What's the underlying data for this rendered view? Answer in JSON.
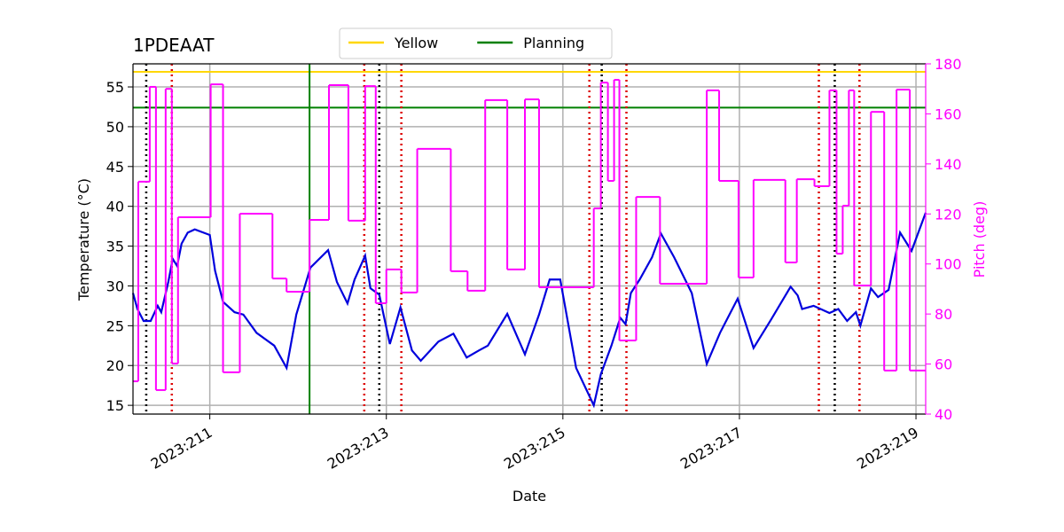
{
  "chart_data": {
    "type": "line",
    "title": "1PDEAAT",
    "x_label": "Date",
    "y_label": "Temperature (°C)",
    "y2_label": "Pitch (deg)",
    "y2_color": "#ff00ff",
    "xlim": [
      210.13,
      219.11
    ],
    "xticks": [
      {
        "value": 211,
        "label": "2023:211"
      },
      {
        "value": 213,
        "label": "2023:213"
      },
      {
        "value": 215,
        "label": "2023:215"
      },
      {
        "value": 217,
        "label": "2023:217"
      },
      {
        "value": 219,
        "label": "2023:219"
      }
    ],
    "ylim": [
      13.9,
      57.9
    ],
    "yticks": [
      15,
      20,
      25,
      30,
      35,
      40,
      45,
      50,
      55
    ],
    "y2lim": [
      40,
      180
    ],
    "y2ticks": [
      40,
      60,
      80,
      100,
      120,
      140,
      160,
      180
    ],
    "grid": true,
    "reference_lines": [
      {
        "name": "Yellow",
        "color": "#ffd700",
        "y": 56.9
      },
      {
        "name": "Planning",
        "color": "#008000",
        "y": 52.4,
        "x": 212.13
      }
    ],
    "vertical_markers": [
      {
        "color": "#000000",
        "x": [
          210.28,
          212.92,
          215.44,
          218.08
        ]
      },
      {
        "color": "#dd0000",
        "x": [
          210.57,
          212.75,
          213.17,
          215.3,
          215.72,
          217.9,
          218.36
        ]
      }
    ],
    "series": [
      {
        "color": "#0000dd",
        "style": "line",
        "x": [
          210.13,
          210.18,
          210.25,
          210.33,
          210.41,
          210.45,
          210.53,
          210.58,
          210.63,
          210.68,
          210.75,
          210.83,
          211.0,
          211.06,
          211.15,
          211.28,
          211.38,
          211.53,
          211.73,
          211.87,
          211.98,
          212.14,
          212.34,
          212.44,
          212.56,
          212.64,
          212.76,
          212.82,
          212.92,
          213.04,
          213.16,
          213.29,
          213.39,
          213.59,
          213.76,
          213.91,
          214.05,
          214.15,
          214.37,
          214.57,
          214.73,
          214.85,
          214.97,
          215.15,
          215.35,
          215.43,
          215.55,
          215.65,
          215.71,
          215.77,
          215.87,
          216.01,
          216.11,
          216.26,
          216.46,
          216.63,
          216.78,
          216.98,
          217.16,
          217.36,
          217.51,
          217.58,
          217.66,
          217.71,
          217.84,
          218.02,
          218.12,
          218.22,
          218.32,
          218.37,
          218.49,
          218.57,
          218.69,
          218.82,
          218.95,
          219.11
        ],
        "values": [
          29.1,
          27.1,
          25.6,
          25.6,
          27.5,
          26.7,
          30.5,
          33.4,
          32.5,
          35.3,
          36.7,
          37.1,
          36.4,
          31.9,
          28.0,
          26.7,
          26.4,
          24.1,
          22.5,
          19.7,
          26.4,
          32.3,
          34.5,
          30.5,
          27.8,
          30.8,
          33.8,
          29.7,
          28.9,
          22.7,
          27.3,
          21.9,
          20.6,
          23.0,
          24.0,
          21.0,
          21.9,
          22.5,
          26.5,
          21.4,
          26.4,
          30.8,
          30.8,
          19.7,
          15.0,
          18.9,
          22.5,
          26.0,
          25.2,
          29.1,
          30.8,
          33.6,
          36.6,
          33.6,
          29.1,
          20.2,
          24.1,
          28.4,
          22.2,
          25.8,
          28.6,
          29.9,
          28.8,
          27.1,
          27.5,
          26.6,
          27.1,
          25.6,
          26.7,
          25.0,
          29.7,
          28.6,
          29.5,
          36.7,
          34.4,
          39.2
        ]
      },
      {
        "color": "#ff00ff",
        "style": "step",
        "axis": "y2",
        "x": [
          210.13,
          210.19,
          210.32,
          210.39,
          210.5,
          210.57,
          210.64,
          211.01,
          211.15,
          211.34,
          211.71,
          211.87,
          212.13,
          212.35,
          212.57,
          212.76,
          212.88,
          213.0,
          213.17,
          213.35,
          213.73,
          213.92,
          214.12,
          214.37,
          214.57,
          214.73,
          215.35,
          215.43,
          215.51,
          215.58,
          215.64,
          215.83,
          216.1,
          216.63,
          216.77,
          216.99,
          217.16,
          217.52,
          217.65,
          217.85,
          218.02,
          218.1,
          218.17,
          218.24,
          218.3,
          218.49,
          218.64,
          218.78,
          218.93
        ],
        "values": [
          53.1,
          132.9,
          170.8,
          49.6,
          170.0,
          60.2,
          118.7,
          171.8,
          56.7,
          120.1,
          94.2,
          88.9,
          117.6,
          171.5,
          117.3,
          171.1,
          84.3,
          97.8,
          88.6,
          146.0,
          97.1,
          89.3,
          165.5,
          97.8,
          165.8,
          90.7,
          122.2,
          172.5,
          133.2,
          173.6,
          69.4,
          126.8,
          92.1,
          169.4,
          133.2,
          94.6,
          133.6,
          100.6,
          133.9,
          131.1,
          169.4,
          104.1,
          123.3,
          169.4,
          91.4,
          160.8,
          57.4,
          169.7,
          57.4
        ]
      }
    ]
  }
}
